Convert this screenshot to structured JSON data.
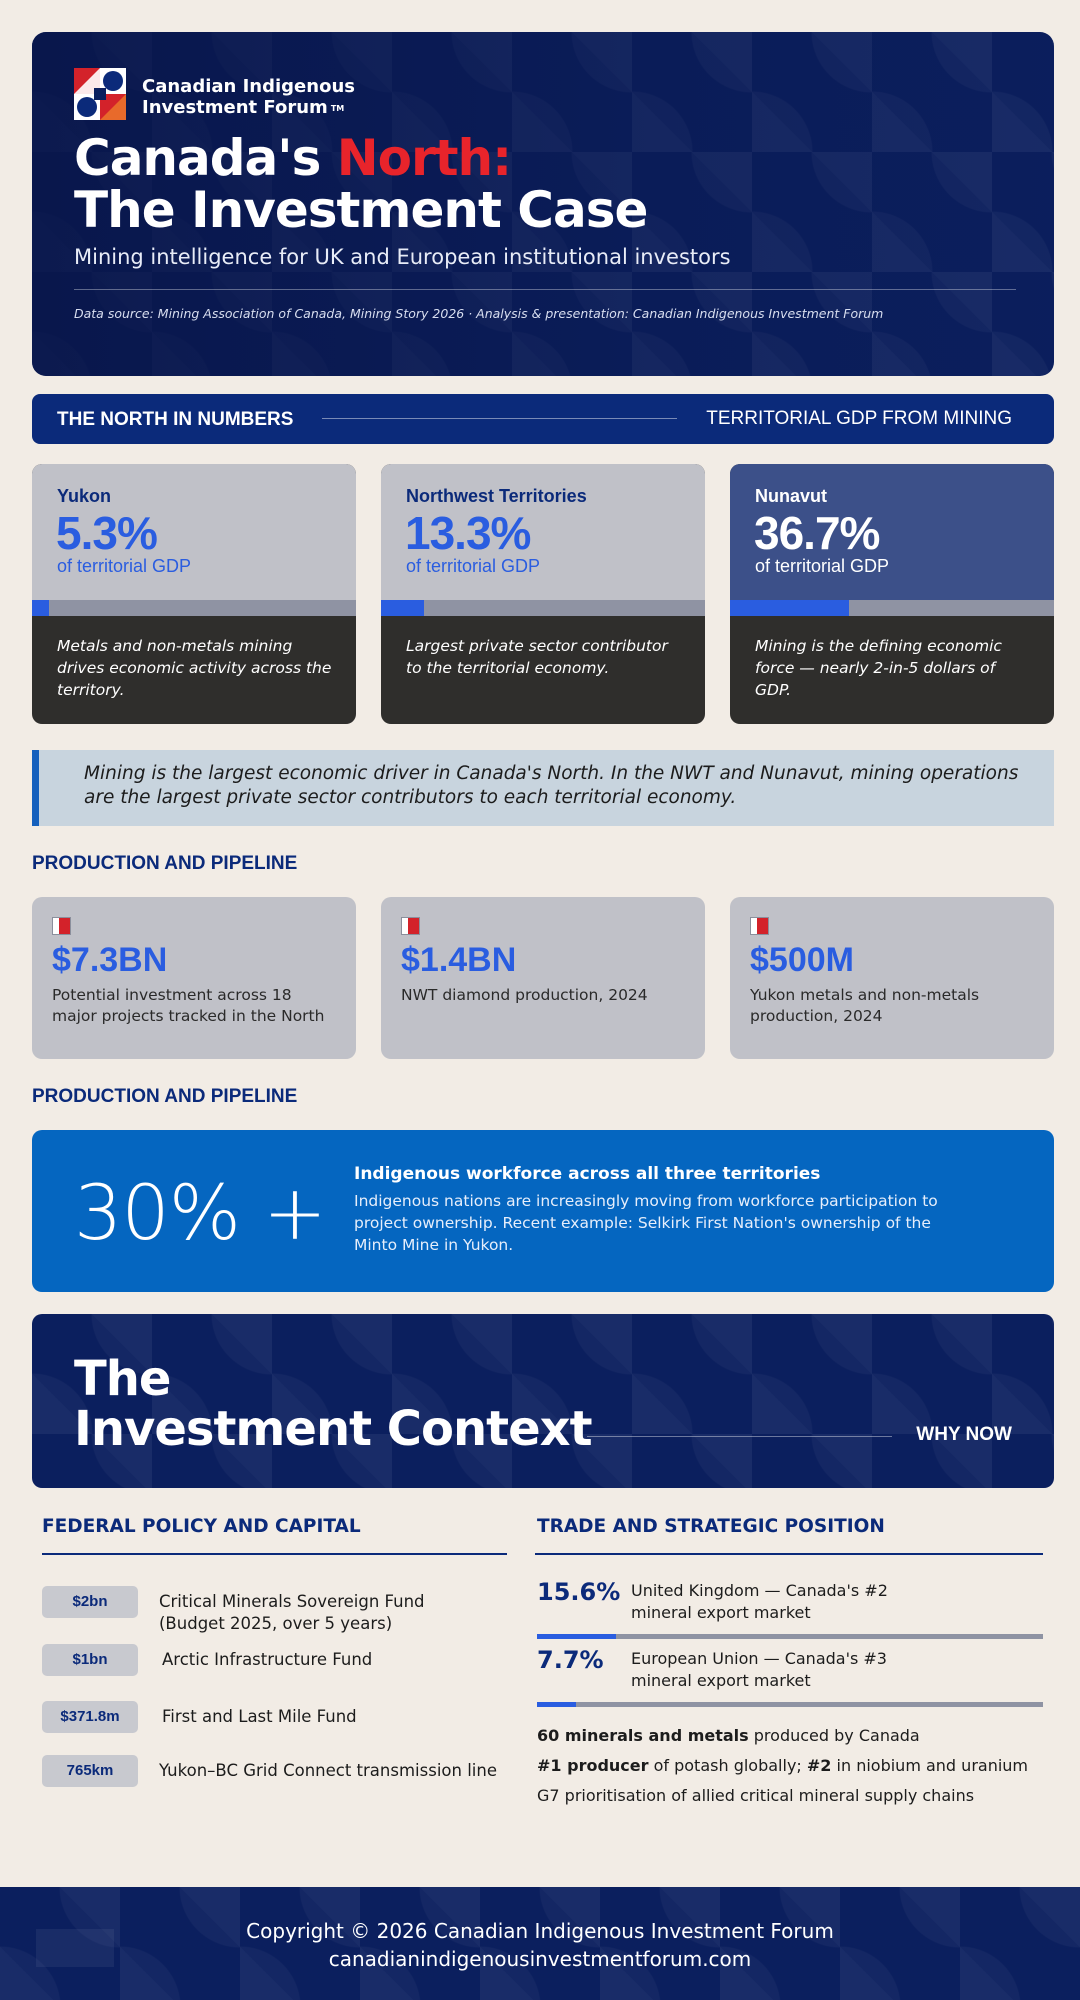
{
  "hero": {
    "org_line1": "Canadian Indigenous",
    "org_line2": "Investment Forum",
    "org_tm": "TM",
    "title_part1": "Canada's ",
    "title_accent": "North:",
    "title_line2": "The Investment Case",
    "subtitle": "Mining intelligence for UK and European institutional investors",
    "source": "Data source: Mining Association of Canada, Mining Story 2026 · Analysis & presentation: Canadian Indigenous Investment Forum",
    "accent_color": "#e8242b"
  },
  "numbers_bar": {
    "left": "THE NORTH IN NUMBERS",
    "right": "TERRITORIAL GDP FROM MINING"
  },
  "gdp_cards": [
    {
      "name": "Yukon",
      "value": "5.3%",
      "unit": "of territorial GDP",
      "share": 0.053,
      "desc": "Metals and non-metals mining drives economic activity across the territory."
    },
    {
      "name": "Northwest Territories",
      "value": "13.3%",
      "unit": "of territorial GDP",
      "share": 0.133,
      "desc": "Largest private sector contributor to the territorial economy."
    },
    {
      "name": "Nunavut",
      "value": "36.7%",
      "unit": "of territorial GDP",
      "share": 0.367,
      "desc": "Mining is the defining economic force — nearly 2-in-5 dollars of GDP."
    }
  ],
  "quote": "Mining is the largest economic driver in Canada's North. In the NWT and Nunavut, mining operations are the largest private sector contributors to each territorial economy.",
  "pipeline": {
    "heading": "PRODUCTION AND PIPELINE",
    "cards": [
      {
        "value": "$7.3BN",
        "desc": "Potential investment across 18 major projects tracked in the North"
      },
      {
        "value": "$1.4BN",
        "desc": "NWT diamond production, 2024"
      },
      {
        "value": "$500M",
        "desc": "Yukon metals and non-metals production, 2024"
      }
    ]
  },
  "workforce": {
    "heading": "PRODUCTION AND PIPELINE",
    "stat": "30% +",
    "title": "Indigenous workforce across all three territories",
    "desc": "Indigenous nations are increasingly moving from workforce participation to project ownership. Recent example: Selkirk First Nation's ownership of the Minto Mine in Yukon."
  },
  "context": {
    "title_line1": "The",
    "title_line2": "Investment Context",
    "why": "WHY NOW"
  },
  "federal": {
    "heading": "FEDERAL POLICY AND CAPITAL",
    "items": [
      {
        "amount": "$2bn",
        "label_line1": "Critical Minerals Sovereign Fund",
        "label_line2": "(Budget 2025, over 5 years)"
      },
      {
        "amount": "$1bn",
        "label_line1": "Arctic Infrastructure Fund",
        "label_line2": ""
      },
      {
        "amount": "$371.8m",
        "label_line1": "First and Last Mile Fund",
        "label_line2": ""
      },
      {
        "amount": "765km",
        "label_line1": "Yukon–BC Grid Connect transmission line",
        "label_line2": ""
      }
    ]
  },
  "trade": {
    "heading": "TRADE AND STRATEGIC POSITION",
    "items": [
      {
        "value": "15.6%",
        "share": 0.156,
        "label_line1": "United Kingdom — Canada's #2",
        "label_line2": "mineral export market"
      },
      {
        "value": "7.7%",
        "share": 0.077,
        "label_line1": "European Union — Canada's #3",
        "label_line2": "mineral export market"
      }
    ],
    "fact1_bold": "60 minerals and metals",
    "fact1_rest": " produced by Canada",
    "fact2_bold1": "#1 producer",
    "fact2_mid": " of potash globally; ",
    "fact2_bold2": "#2",
    "fact2_rest": " in niobium and uranium",
    "fact3": "G7 prioritisation of allied critical mineral supply chains"
  },
  "footer": {
    "copyright": "Copyright © 2026 Canadian Indigenous Investment Forum",
    "website": "canadianindigenousinvestmentforum.com"
  }
}
